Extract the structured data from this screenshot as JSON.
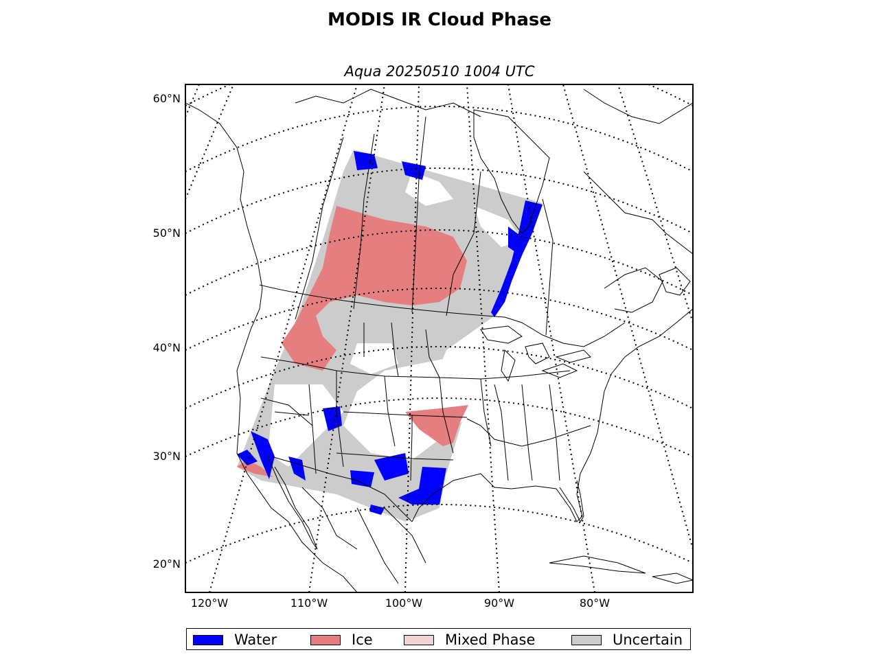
{
  "header": {
    "title": "MODIS IR Cloud Phase",
    "subtitle": "Aqua 20250510 1004 UTC"
  },
  "map": {
    "projection": "lambert-conformal",
    "graticule_style": "dotted",
    "lat_labels": [
      "60°N",
      "50°N",
      "40°N",
      "30°N",
      "20°N"
    ],
    "lon_labels": [
      "120°W",
      "110°W",
      "100°W",
      "90°W",
      "80°W"
    ],
    "colors": {
      "water": "#0000ff",
      "ice": "#e57f7f",
      "mixed_phase": "#f2d3d3",
      "uncertain": "#cccccc",
      "boundary": "#000000",
      "background": "#ffffff"
    }
  },
  "legend": {
    "items": [
      {
        "label": "Water",
        "color": "#0000ff"
      },
      {
        "label": "Ice",
        "color": "#e57f7f"
      },
      {
        "label": "Mixed Phase",
        "color": "#f2d3d3"
      },
      {
        "label": "Uncertain",
        "color": "#cccccc"
      }
    ]
  }
}
